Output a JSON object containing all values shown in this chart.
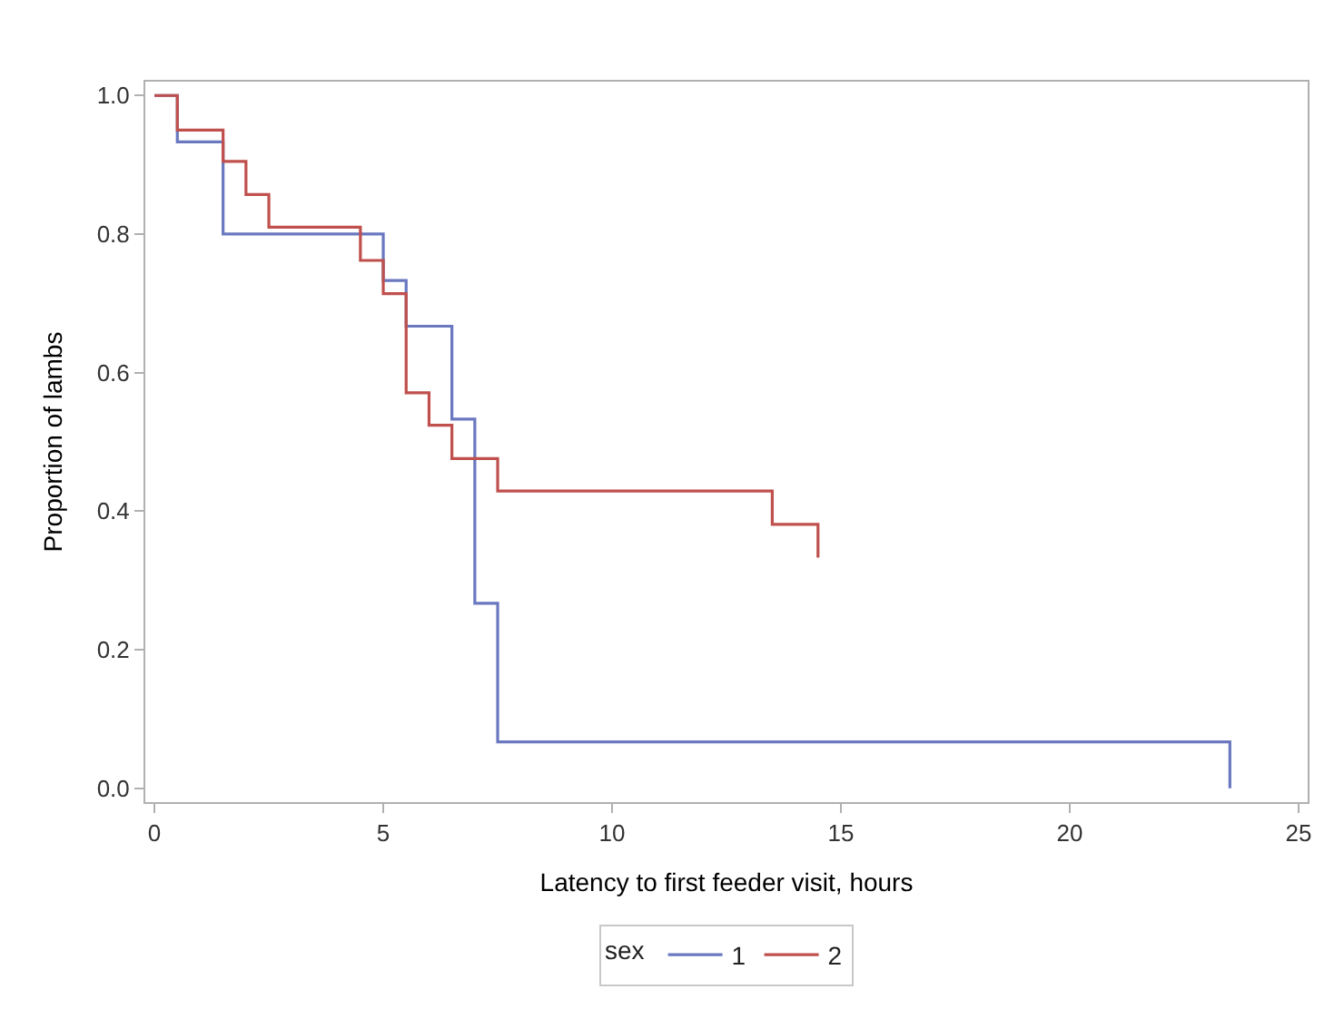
{
  "chart_data": {
    "type": "step",
    "xlabel": "Latency to first feeder visit, hours",
    "ylabel": "Proportion of lambs",
    "legend_title": "sex",
    "series": [
      {
        "name": "1",
        "color": "#6a78c0",
        "x": [
          0,
          0.5,
          1.5,
          5,
          5.5,
          6.5,
          7,
          7.5,
          23.5
        ],
        "values": [
          1.0,
          0.933,
          0.8,
          0.733,
          0.667,
          0.533,
          0.267,
          0.067,
          0.0
        ]
      },
      {
        "name": "2",
        "color": "#c0504d",
        "x": [
          0,
          0.5,
          1.5,
          2,
          2.5,
          4.5,
          5,
          5.5,
          6,
          6.5,
          7.5,
          13.5,
          14.5
        ],
        "values": [
          1.0,
          0.95,
          0.905,
          0.857,
          0.81,
          0.762,
          0.714,
          0.571,
          0.524,
          0.476,
          0.429,
          0.381,
          0.333
        ]
      }
    ],
    "xlim": [
      -0.2,
      25.2
    ],
    "xticks": [
      0,
      5,
      10,
      15,
      20,
      25
    ],
    "ylim": [
      -0.02,
      1.02
    ],
    "yticks": [
      {
        "value": 0,
        "label": "0.0"
      },
      {
        "value": 0.2,
        "label": "0.2"
      },
      {
        "value": 0.4,
        "label": "0.4"
      },
      {
        "value": 0.6,
        "label": "0.6"
      },
      {
        "value": 0.8,
        "label": "0.8"
      },
      {
        "value": 1,
        "label": "1.0"
      }
    ],
    "legend": "bottom",
    "marker": "none",
    "line_style": "solid"
  }
}
